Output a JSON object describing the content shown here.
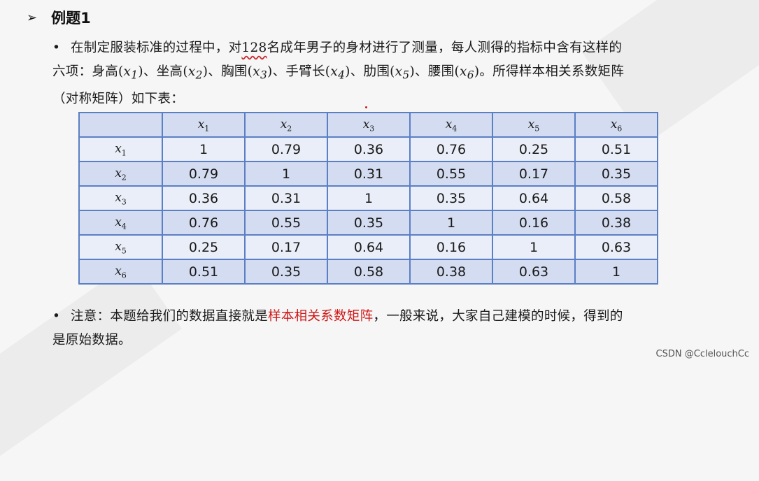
{
  "title": "例题1",
  "paragraph1": {
    "before_number": "在制定服装标准的过程中，对",
    "number": "128",
    "after_number": "名成年男子的身材进行了测量，每人测得的指标中含有这样的",
    "line2_prefix": "六项：",
    "items": [
      {
        "label": "身高",
        "var": "x",
        "sub": "1"
      },
      {
        "label": "坐高",
        "var": "x",
        "sub": "2"
      },
      {
        "label": "胸围",
        "var": "x",
        "sub": "3"
      },
      {
        "label": "手臂长",
        "var": "x",
        "sub": "4"
      },
      {
        "label": "肋围",
        "var": "x",
        "sub": "5"
      },
      {
        "label": "腰围",
        "var": "x",
        "sub": "6"
      }
    ],
    "line2_suffix": "。所得样本相关系数矩阵",
    "line3": "（对称矩阵）如下表："
  },
  "table": {
    "headers": [
      {
        "var": "x",
        "sub": "1"
      },
      {
        "var": "x",
        "sub": "2"
      },
      {
        "var": "x",
        "sub": "3"
      },
      {
        "var": "x",
        "sub": "4"
      },
      {
        "var": "x",
        "sub": "5"
      },
      {
        "var": "x",
        "sub": "6"
      }
    ],
    "rows": [
      {
        "var": "x",
        "sub": "1",
        "values": [
          "1",
          "0.79",
          "0.36",
          "0.76",
          "0.25",
          "0.51"
        ]
      },
      {
        "var": "x",
        "sub": "2",
        "values": [
          "0.79",
          "1",
          "0.31",
          "0.55",
          "0.17",
          "0.35"
        ]
      },
      {
        "var": "x",
        "sub": "3",
        "values": [
          "0.36",
          "0.31",
          "1",
          "0.35",
          "0.64",
          "0.58"
        ]
      },
      {
        "var": "x",
        "sub": "4",
        "values": [
          "0.76",
          "0.55",
          "0.35",
          "1",
          "0.16",
          "0.38"
        ]
      },
      {
        "var": "x",
        "sub": "5",
        "values": [
          "0.25",
          "0.17",
          "0.64",
          "0.16",
          "1",
          "0.63"
        ]
      },
      {
        "var": "x",
        "sub": "6",
        "values": [
          "0.51",
          "0.35",
          "0.58",
          "0.38",
          "0.63",
          "1"
        ]
      }
    ]
  },
  "paragraph2": {
    "before": "注意：本题给我们的数据直接就是",
    "highlight": "样本相关系数矩阵",
    "after": "，一般来说，大家自己建模的时候，得到的",
    "line2": "是原始数据。"
  },
  "watermark": "CSDN @CclelouchCc",
  "colors": {
    "header_row": "#d3dcf0",
    "alt_row": "#eaeef8",
    "border": "#5b7fc4",
    "highlight": "#d01818"
  }
}
